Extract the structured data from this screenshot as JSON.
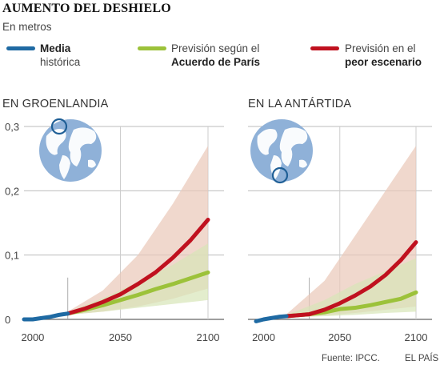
{
  "header": {
    "title": "AUMENTO DEL DESHIELO",
    "subtitle": "En metros"
  },
  "legend": [
    {
      "line1": "Media",
      "line1_bold": true,
      "line2": "histórica",
      "line2_bold": false,
      "color": "#1f6aa3"
    },
    {
      "line1": "Previsión según el",
      "line1_bold": false,
      "line2": "Acuerdo de París",
      "line2_bold": true,
      "color": "#9cc23a"
    },
    {
      "line1": "Previsión en el",
      "line1_bold": false,
      "line2": "peor escenario",
      "line2_bold": true,
      "color": "#c0111f"
    }
  ],
  "footer": {
    "source": "Fuente: IPCC.",
    "brand": "EL PAÍS"
  },
  "colors": {
    "historic": "#1f6aa3",
    "paris": "#9cc23a",
    "worst": "#c0111f",
    "worst_band": "#e9c8b8",
    "paris_band": "#d7e6b8",
    "globe": "#8fb1d8"
  },
  "chart_data": [
    {
      "type": "line",
      "title": "EN GROENLANDIA",
      "map": "globe with Greenland circled",
      "ylim": [
        0,
        0.3
      ],
      "xlim": [
        1995,
        2100
      ],
      "yticks": [
        "0",
        "0,1",
        "0,2",
        "0,3"
      ],
      "xticks": [
        "2000",
        "2050",
        "2100"
      ],
      "series": [
        {
          "name": "Media histórica",
          "x": [
            1995,
            2000,
            2005,
            2010,
            2015,
            2020
          ],
          "y": [
            0.0,
            0.0,
            0.002,
            0.004,
            0.007,
            0.009
          ]
        },
        {
          "name": "Previsión según el Acuerdo de París",
          "x": [
            2020,
            2030,
            2040,
            2050,
            2060,
            2070,
            2080,
            2090,
            2100
          ],
          "y": [
            0.009,
            0.015,
            0.022,
            0.03,
            0.038,
            0.047,
            0.055,
            0.064,
            0.073
          ]
        },
        {
          "name": "Previsión en el peor escenario",
          "x": [
            2020,
            2030,
            2040,
            2050,
            2060,
            2070,
            2080,
            2090,
            2100
          ],
          "y": [
            0.009,
            0.017,
            0.027,
            0.039,
            0.055,
            0.073,
            0.096,
            0.123,
            0.155
          ]
        }
      ],
      "bands": [
        {
          "series": "Previsión en el peor escenario",
          "x": [
            2020,
            2040,
            2060,
            2080,
            2100
          ],
          "low": [
            0.007,
            0.012,
            0.02,
            0.032,
            0.048
          ],
          "high": [
            0.012,
            0.045,
            0.1,
            0.18,
            0.27
          ]
        },
        {
          "series": "Previsión según el Acuerdo de París",
          "x": [
            2020,
            2040,
            2060,
            2080,
            2100
          ],
          "low": [
            0.007,
            0.012,
            0.018,
            0.024,
            0.03
          ],
          "high": [
            0.011,
            0.033,
            0.058,
            0.085,
            0.118
          ]
        }
      ]
    },
    {
      "type": "line",
      "title": "EN LA ANTÁRTIDA",
      "map": "globe with Antarctica circled",
      "ylim": [
        0,
        0.3
      ],
      "xlim": [
        1995,
        2100
      ],
      "yticks": [
        "0",
        "0,1",
        "0,2",
        "0,3"
      ],
      "xticks": [
        "2000",
        "2050",
        "2100"
      ],
      "series": [
        {
          "name": "Media histórica",
          "x": [
            1995,
            2000,
            2005,
            2010,
            2015
          ],
          "y": [
            -0.003,
            0.0,
            0.002,
            0.004,
            0.005
          ]
        },
        {
          "name": "Previsión según el Acuerdo de París",
          "x": [
            2015,
            2030,
            2040,
            2050,
            2060,
            2070,
            2080,
            2090,
            2100
          ],
          "y": [
            0.005,
            0.008,
            0.011,
            0.016,
            0.018,
            0.022,
            0.027,
            0.032,
            0.042
          ]
        },
        {
          "name": "Previsión en el peor escenario",
          "x": [
            2015,
            2030,
            2040,
            2050,
            2060,
            2070,
            2080,
            2090,
            2100
          ],
          "y": [
            0.005,
            0.008,
            0.015,
            0.025,
            0.037,
            0.051,
            0.069,
            0.092,
            0.12
          ]
        }
      ],
      "bands": [
        {
          "series": "Previsión en el peor escenario",
          "x": [
            2015,
            2040,
            2060,
            2080,
            2100
          ],
          "low": [
            0.003,
            0.006,
            0.01,
            0.015,
            0.02
          ],
          "high": [
            0.008,
            0.06,
            0.13,
            0.2,
            0.27
          ]
        },
        {
          "series": "Previsión según el Acuerdo de París",
          "x": [
            2015,
            2040,
            2060,
            2080,
            2100
          ],
          "low": [
            0.003,
            0.005,
            0.007,
            0.01,
            0.012
          ],
          "high": [
            0.007,
            0.03,
            0.055,
            0.075,
            0.095
          ]
        }
      ]
    }
  ]
}
